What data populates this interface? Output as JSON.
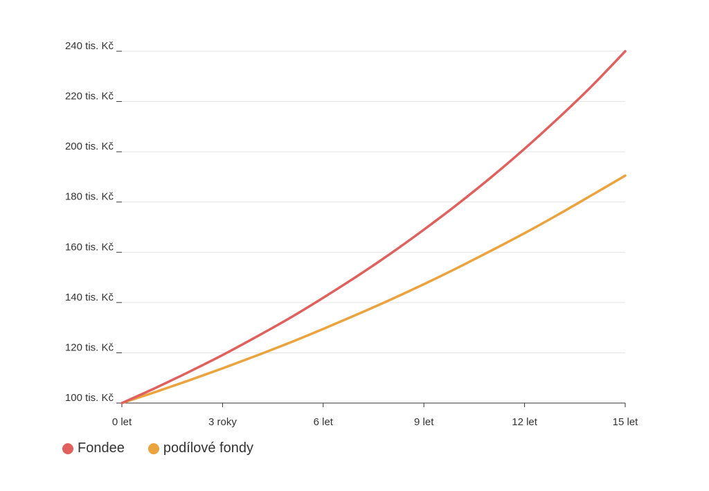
{
  "chart_data": {
    "type": "line",
    "x": [
      0,
      1,
      2,
      3,
      4,
      5,
      6,
      7,
      8,
      9,
      10,
      11,
      12,
      13,
      14,
      15
    ],
    "x_ticks": [
      {
        "value": 0,
        "label": "0 let"
      },
      {
        "value": 3,
        "label": "3 roky"
      },
      {
        "value": 6,
        "label": "6 let"
      },
      {
        "value": 9,
        "label": "9 let"
      },
      {
        "value": 12,
        "label": "12 let"
      },
      {
        "value": 15,
        "label": "15 let"
      }
    ],
    "y_ticks": [
      {
        "value": 100,
        "label": "100 tis. Kč"
      },
      {
        "value": 120,
        "label": "120 tis. Kč"
      },
      {
        "value": 140,
        "label": "140 tis. Kč"
      },
      {
        "value": 160,
        "label": "160 tis. Kč"
      },
      {
        "value": 180,
        "label": "180 tis. Kč"
      },
      {
        "value": 200,
        "label": "200 tis. Kč"
      },
      {
        "value": 220,
        "label": "220 tis. Kč"
      },
      {
        "value": 240,
        "label": "240 tis. Kč"
      }
    ],
    "xlim": [
      0,
      15
    ],
    "ylim": [
      100,
      240
    ],
    "grid": true,
    "legend_position": "bottom-left",
    "series": [
      {
        "name": "Fondee",
        "color": "#e0605e",
        "values": [
          100,
          106.0,
          112.4,
          119.1,
          126.3,
          133.8,
          141.9,
          150.4,
          159.4,
          169.0,
          179.1,
          189.8,
          201.2,
          213.3,
          226.1,
          240.0
        ]
      },
      {
        "name": "podílové fondy",
        "color": "#eba33e",
        "values": [
          100,
          104.4,
          109.0,
          113.8,
          118.8,
          124.0,
          129.5,
          135.2,
          141.1,
          147.3,
          153.8,
          160.6,
          167.6,
          175.0,
          182.7,
          190.5
        ]
      }
    ]
  },
  "legend": {
    "items": [
      {
        "label": "Fondee",
        "color": "#e0605e"
      },
      {
        "label": "podílové fondy",
        "color": "#eba33e"
      }
    ]
  }
}
